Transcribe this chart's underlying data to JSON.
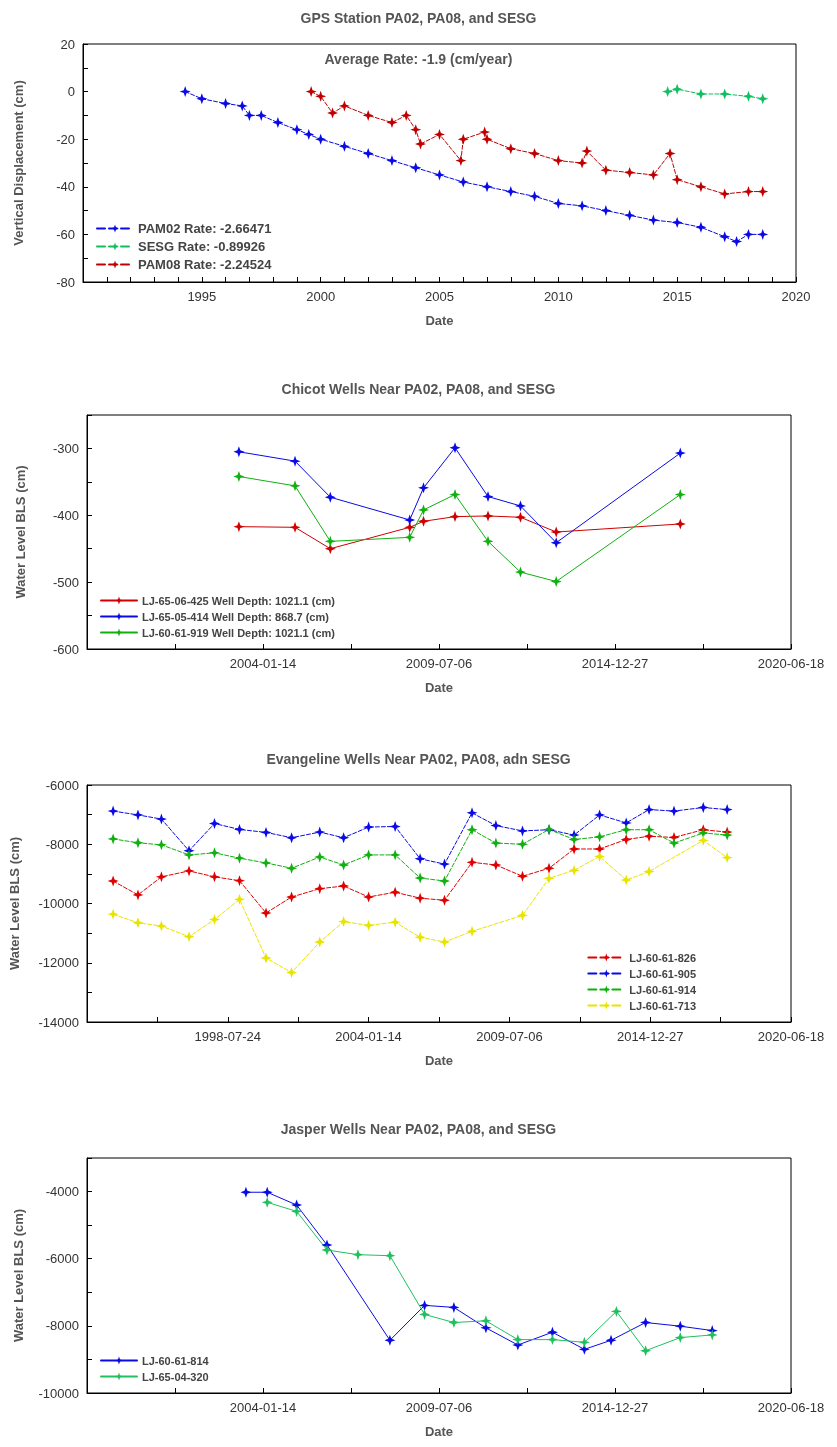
{
  "chart_data": [
    {
      "type": "line",
      "title": "GPS Station PA02, PA08, and SESG",
      "xlabel": "Date",
      "ylabel": "Vertical Displacement (cm)",
      "annotations": [
        "Average Rate: -1.9 (cm/year)"
      ],
      "xlim": [
        1990,
        2020
      ],
      "ylim": [
        -80,
        20
      ],
      "xticks": [
        {
          "value": 1991,
          "label": null
        },
        {
          "value": 1992,
          "label": null
        },
        {
          "value": 1993,
          "label": null
        },
        {
          "value": 1994,
          "label": null
        },
        1995,
        {
          "value": 1996,
          "label": null
        },
        {
          "value": 1997,
          "label": null
        },
        {
          "value": 1998,
          "label": null
        },
        {
          "value": 1999,
          "label": null
        },
        2000,
        {
          "value": 2001,
          "label": null
        },
        {
          "value": 2002,
          "label": null
        },
        {
          "value": 2003,
          "label": null
        },
        {
          "value": 2004,
          "label": null
        },
        2005,
        {
          "value": 2006,
          "label": null
        },
        {
          "value": 2007,
          "label": null
        },
        {
          "value": 2008,
          "label": null
        },
        {
          "value": 2009,
          "label": null
        },
        2010,
        {
          "value": 2011,
          "label": null
        },
        {
          "value": 2012,
          "label": null
        },
        {
          "value": 2013,
          "label": null
        },
        {
          "value": 2014,
          "label": null
        },
        2015,
        {
          "value": 2016,
          "label": null
        },
        {
          "value": 2017,
          "label": null
        },
        {
          "value": 2018,
          "label": null
        },
        {
          "value": 2019,
          "label": null
        },
        2020
      ],
      "yticks": [
        -80,
        {
          "value": -70,
          "label": null
        },
        -60,
        {
          "value": -50,
          "label": null
        },
        -40,
        {
          "value": -30,
          "label": null
        },
        -20,
        {
          "value": -10,
          "label": null
        },
        0,
        {
          "value": 10,
          "label": null
        },
        20
      ],
      "legend": "bottom left",
      "marker": "star",
      "line_style": "dashed",
      "series": [
        {
          "name": "PAM02 Rate: -2.66471",
          "color": "#0a0ae6",
          "x": [
            1994.3,
            1995,
            1996,
            1996.7,
            1997,
            1997.5,
            1998.2,
            1999,
            1999.5,
            2000,
            2001,
            2002,
            2003,
            2004,
            2005,
            2006,
            2007,
            2008,
            2009,
            2010,
            2011,
            2012,
            2013,
            2014,
            2015,
            2016,
            2017,
            2017.5,
            2018,
            2018.6
          ],
          "values": [
            0,
            -3,
            -5,
            -6,
            -10,
            -10,
            -13,
            -16,
            -18,
            -20,
            -23,
            -26,
            -29,
            -32,
            -35,
            -38,
            -40,
            -42,
            -44,
            -47,
            -48,
            -50,
            -52,
            -54,
            -55,
            -57,
            -61,
            -63,
            -60,
            -60
          ]
        },
        {
          "name": "SESG Rate: -0.89926",
          "color": "#10c060",
          "x": [
            2014.6,
            2015,
            2016,
            2017,
            2018,
            2018.6
          ],
          "values": [
            0,
            1,
            -1,
            -1,
            -2,
            -3
          ]
        },
        {
          "name": "PAM08 Rate: -2.24524",
          "color": "#c00000",
          "x": [
            1999.6,
            2000,
            2000.5,
            2001,
            2002,
            2003,
            2003.6,
            2004,
            2004.2,
            2005,
            2005.9,
            2006,
            2006.9,
            2007,
            2008,
            2009,
            2010,
            2011,
            2011.2,
            2012,
            2013,
            2014,
            2014.7,
            2015,
            2016,
            2017,
            2018,
            2018.6
          ],
          "values": [
            0,
            -2,
            -9,
            -6,
            -10,
            -13,
            -10,
            -16,
            -22,
            -18,
            -29,
            -20,
            -17,
            -20,
            -24,
            -26,
            -29,
            -30,
            -25,
            -33,
            -34,
            -35,
            -26,
            -37,
            -40,
            -43,
            -42,
            -42
          ]
        }
      ]
    },
    {
      "type": "line",
      "title": "Chicot Wells Near PA02, PA08, and SESG",
      "xlabel": "Date",
      "ylabel": "Water Level BLS (cm)",
      "x": [
        "2003-04-15",
        "2005-01-12",
        "2006-02-17",
        "2008-08-07",
        "2009-01-11",
        "2010-01-04",
        "2011-01-14",
        "2012-01-18",
        "2013-02-27",
        "2017-01-07"
      ],
      "xlim": [
        "1998-07-24",
        "2020-06-18"
      ],
      "ylim": [
        -600,
        -250
      ],
      "xticks": [
        {
          "value": "2001-04-19",
          "label": null
        },
        "2004-01-14",
        {
          "value": "2006-10-10",
          "label": null
        },
        "2009-07-06",
        {
          "value": "2012-04-01",
          "label": null
        },
        "2014-12-27",
        {
          "value": "2017-09-22",
          "label": null
        },
        "2020-06-18"
      ],
      "yticks": [
        -600,
        {
          "value": -550,
          "label": null
        },
        -500,
        {
          "value": -450,
          "label": null
        },
        -400,
        {
          "value": -350,
          "label": null
        },
        -300,
        {
          "value": -250,
          "label": null
        }
      ],
      "legend": "bottom left",
      "marker": "star",
      "line_style": "solid",
      "series": [
        {
          "name": "LJ-65-06-425 Well Depth: 1021.1 (cm)",
          "color": "#d00000",
          "values": [
            -417,
            -418,
            -450,
            -418,
            -409,
            -402,
            -401,
            -403,
            -425,
            -413
          ]
        },
        {
          "name": "LJ-65-05-414 Well Depth: 868.7 (cm)",
          "color": "#0a0ae6",
          "values": [
            -305,
            -319,
            -373,
            -407,
            -359,
            -299,
            -372,
            -386,
            -441,
            -307
          ]
        },
        {
          "name": "LJ-60-61-919 Well Depth: 1021.1 (cm)",
          "color": "#10b010",
          "values": [
            -342,
            -356,
            -439,
            -433,
            -392,
            -369,
            -439,
            -485,
            -499,
            -369
          ]
        }
      ]
    },
    {
      "type": "line",
      "title": "Evangeline Wells Near PA02, PA08, adn SESG",
      "xlabel": "Date",
      "ylabel": "Water Level BLS (cm)",
      "x": [
        "1994-02-06",
        "1995-01-25",
        "1995-12-24",
        "1997-01-19",
        "1998-01-16",
        "1999-01-06",
        "2000-01-18",
        "2001-01-15",
        "2002-02-19",
        "2003-01-24",
        "2004-01-14",
        "2005-01-25",
        "2006-01-15",
        "2006-12-27",
        "2008-01-22",
        "2008-12-26",
        "2010-01-08",
        "2011-01-20",
        "2012-01-11",
        "2013-01-07",
        "2014-01-20",
        "2014-12-11",
        "2015-11-30",
        "2017-01-19",
        "2017-12-24"
      ],
      "xlim": [
        "1993-01-31",
        "2020-06-18"
      ],
      "ylim": [
        -14000,
        -6000
      ],
      "xticks": [
        {
          "value": "1995-10-28",
          "label": null
        },
        "1998-07-24",
        {
          "value": "2001-04-19",
          "label": null
        },
        "2004-01-14",
        {
          "value": "2006-10-10",
          "label": null
        },
        "2009-07-06",
        {
          "value": "2012-04-01",
          "label": null
        },
        "2014-12-27",
        {
          "value": "2017-09-22",
          "label": null
        },
        "2020-06-18"
      ],
      "yticks": [
        -14000,
        {
          "value": -13000,
          "label": null
        },
        -12000,
        {
          "value": -11000,
          "label": null
        },
        -10000,
        {
          "value": -9000,
          "label": null
        },
        -8000,
        {
          "value": -7000,
          "label": null
        },
        -6000
      ],
      "legend": "bottom right",
      "marker": "star",
      "line_style": "dashed",
      "series": [
        {
          "name": "LJ-60-61-826",
          "color": "#e00000",
          "values": [
            -9240,
            -9710,
            -9100,
            -8900,
            -9100,
            -9230,
            -10320,
            -9780,
            -9500,
            -9410,
            -9780,
            -9620,
            -9820,
            -9890,
            -8610,
            -8700,
            -9080,
            -8810,
            -8160,
            -8160,
            -7840,
            -7730,
            -7770,
            -7510,
            -7590
          ]
        },
        {
          "name": "LJ-60-61-905",
          "color": "#0a0ae6",
          "values": [
            -6880,
            -7010,
            -7150,
            -8220,
            -7300,
            -7500,
            -7600,
            -7780,
            -7590,
            -7780,
            -7420,
            -7400,
            -8490,
            -8670,
            -6940,
            -7370,
            -7550,
            -7510,
            -7690,
            -7010,
            -7280,
            -6830,
            -6880,
            -6760,
            -6830
          ]
        },
        {
          "name": "LJ-60-61-914",
          "color": "#10b010",
          "values": [
            -7820,
            -7950,
            -8020,
            -8360,
            -8290,
            -8470,
            -8630,
            -8810,
            -8430,
            -8700,
            -8360,
            -8360,
            -9140,
            -9240,
            -7510,
            -7960,
            -8000,
            -7500,
            -7840,
            -7750,
            -7510,
            -7510,
            -7960,
            -7620,
            -7690
          ]
        },
        {
          "name": "LJ-60-61-713",
          "color": "#e8e400",
          "x": [
            "1994-02-06",
            "1995-01-25",
            "1995-12-24",
            "1997-01-19",
            "1998-01-16",
            "1999-01-06",
            "2000-01-18",
            "2001-01-15",
            "2002-02-19",
            "2003-01-24",
            "2004-01-14",
            "2005-01-25",
            "2006-01-15",
            "2006-12-27",
            "2008-01-22",
            "2010-01-08",
            "2011-01-20",
            "2012-01-11",
            "2013-01-07",
            "2014-01-20",
            "2014-12-11",
            "2017-01-19",
            "2017-12-24"
          ],
          "values": [
            -10360,
            -10650,
            -10760,
            -11120,
            -10540,
            -9860,
            -11840,
            -12330,
            -11300,
            -10610,
            -10740,
            -10630,
            -11140,
            -11300,
            -10940,
            -10400,
            -9150,
            -8880,
            -8410,
            -9210,
            -8920,
            -7870,
            -8450
          ]
        }
      ]
    },
    {
      "type": "line",
      "title": "Jasper Wells Near PA02, PA08, and SESG",
      "xlabel": "Date",
      "ylabel": "Water Level BLS (cm)",
      "xlim": [
        "1998-07-24",
        "2020-06-18"
      ],
      "ylim": [
        -10000,
        -3000
      ],
      "xticks": [
        {
          "value": "2001-04-19",
          "label": null
        },
        "2004-01-14",
        {
          "value": "2006-10-10",
          "label": null
        },
        "2009-07-06",
        {
          "value": "2012-04-01",
          "label": null
        },
        "2014-12-27",
        {
          "value": "2017-09-22",
          "label": null
        },
        "2020-06-18"
      ],
      "yticks": [
        -10000,
        {
          "value": -9000,
          "label": null
        },
        -8000,
        {
          "value": -7000,
          "label": null
        },
        -6000,
        {
          "value": -5000,
          "label": null
        },
        -4000,
        {
          "value": -3000,
          "label": null
        }
      ],
      "legend": "bottom left",
      "marker": "star",
      "line_style": "solid",
      "series": [
        {
          "name": "LJ-60-61-814",
          "color": "#0a0ae6",
          "x": [
            "2003-07-04",
            "2004-03-02",
            "2005-01-30",
            "2006-01-10",
            "2007-12-26",
            "2009-01-23",
            "2009-12-22",
            "2010-12-21",
            "2011-12-19",
            "2013-01-15",
            "2014-01-13",
            "2014-11-12",
            "2015-12-10",
            "2017-01-07",
            "2018-01-05"
          ],
          "values": [
            -4020,
            -4020,
            -4400,
            -5590,
            -8430,
            -7390,
            -7450,
            -8060,
            -8570,
            -8190,
            -8700,
            -8430,
            -7900,
            -8010,
            -8140
          ]
        },
        {
          "name": "LJ-65-04-320",
          "color": "#20c060",
          "x": [
            "2004-03-02",
            "2005-01-30",
            "2006-01-10",
            "2006-12-28",
            "2007-12-26",
            "2009-01-23",
            "2009-12-22",
            "2010-12-21",
            "2011-12-19",
            "2013-01-15",
            "2014-01-13",
            "2015-01-12",
            "2015-12-10",
            "2017-01-07",
            "2018-01-05"
          ],
          "values": [
            -4320,
            -4590,
            -5740,
            -5880,
            -5910,
            -7660,
            -7900,
            -7850,
            -8410,
            -8410,
            -8490,
            -7570,
            -8740,
            -8350,
            -8270
          ]
        }
      ]
    }
  ]
}
